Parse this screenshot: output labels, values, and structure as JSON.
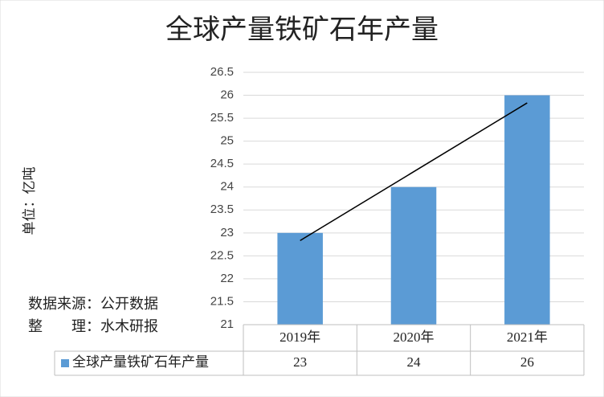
{
  "chart_data": {
    "type": "bar",
    "title": "全球产量铁矿石年产量",
    "ylabel": "单位：亿吨",
    "annotations": [
      "数据来源：公开数据",
      "整　　理：水木研报"
    ],
    "categories": [
      "2019年",
      "2020年",
      "2021年"
    ],
    "series": [
      {
        "name": "全球产量铁矿石年产量",
        "color": "#5b9bd5",
        "values": [
          23,
          24,
          26
        ]
      }
    ],
    "ylim": [
      21,
      26.5
    ],
    "yticks": [
      21,
      21.5,
      22,
      22.5,
      23,
      23.5,
      24,
      24.5,
      25,
      25.5,
      26,
      26.5
    ],
    "grid": true,
    "trendline": true,
    "data_table": true
  }
}
